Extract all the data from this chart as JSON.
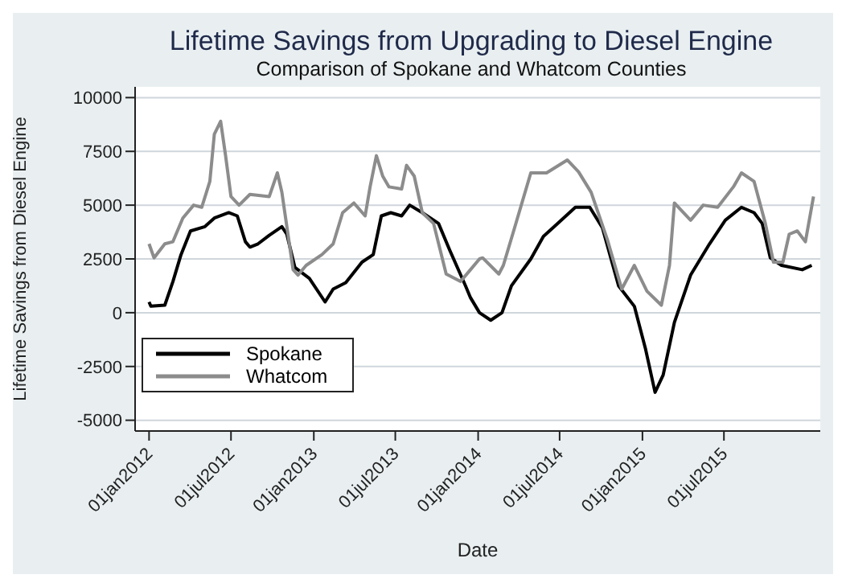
{
  "chart_data": {
    "type": "line",
    "title": "Lifetime Savings from Upgrading to Diesel Engine",
    "subtitle": "Comparison of Spokane and Whatcom Counties",
    "xlabel": "Date",
    "ylabel": "Lifetime Savings from Diesel Engine",
    "xlim": [
      "2011-12-01",
      "2016-01-31"
    ],
    "xticks": [
      {
        "value": "2012-01-01",
        "label": "01jan2012"
      },
      {
        "value": "2012-07-01",
        "label": "01jul2012"
      },
      {
        "value": "2013-01-01",
        "label": "01jan2013"
      },
      {
        "value": "2013-07-01",
        "label": "01jul2013"
      },
      {
        "value": "2014-01-01",
        "label": "01jan2014"
      },
      {
        "value": "2014-07-01",
        "label": "01jul2014"
      },
      {
        "value": "2015-01-01",
        "label": "01jan2015"
      },
      {
        "value": "2015-07-01",
        "label": "01jul2015"
      }
    ],
    "ylim": [
      -5500,
      10500
    ],
    "yticks": [
      -5000,
      -2500,
      0,
      2500,
      5000,
      7500,
      10000
    ],
    "grid": "y",
    "legend": "bottom left",
    "marker": "none",
    "line_style": "solid",
    "series": [
      {
        "name": "Spokane",
        "color": "#000000",
        "x": [
          "2012-01-01",
          "2012-01-05",
          "2012-02-05",
          "2012-02-23",
          "2012-03-12",
          "2012-04-02",
          "2012-05-04",
          "2012-05-25",
          "2012-06-26",
          "2012-07-15",
          "2012-08-02",
          "2012-08-12",
          "2012-08-30",
          "2012-09-24",
          "2012-10-22",
          "2012-11-02",
          "2012-11-20",
          "2012-12-22",
          "2013-01-26",
          "2013-02-13",
          "2013-03-13",
          "2013-04-18",
          "2013-05-13",
          "2013-05-31",
          "2013-06-21",
          "2013-07-15",
          "2013-08-02",
          "2013-08-30",
          "2013-10-05",
          "2013-10-30",
          "2013-12-04",
          "2013-12-15",
          "2014-01-04",
          "2014-01-29",
          "2014-02-23",
          "2014-03-16",
          "2014-04-28",
          "2014-05-26",
          "2014-06-27",
          "2014-08-05",
          "2014-09-06",
          "2014-10-04",
          "2014-11-09",
          "2014-12-14",
          "2015-01-08",
          "2015-01-29",
          "2015-02-16",
          "2015-03-13",
          "2015-04-18",
          "2015-05-30",
          "2015-07-04",
          "2015-08-09",
          "2015-09-06",
          "2015-09-24",
          "2015-10-12",
          "2015-11-06",
          "2015-12-22",
          "2016-01-12"
        ],
        "values": [
          500,
          300,
          350,
          1450,
          2700,
          3800,
          4000,
          4400,
          4650,
          4500,
          3300,
          3050,
          3200,
          3600,
          4000,
          3650,
          2100,
          1600,
          500,
          1100,
          1400,
          2350,
          2700,
          4500,
          4650,
          4500,
          5000,
          4650,
          4150,
          2900,
          1250,
          700,
          0,
          -350,
          0,
          1250,
          2500,
          3550,
          4150,
          4900,
          4900,
          3950,
          1250,
          300,
          -1700,
          -3700,
          -2900,
          -450,
          1750,
          3200,
          4300,
          4900,
          4650,
          4150,
          2550,
          2200,
          2000,
          2200
        ]
      },
      {
        "name": "Whatcom",
        "color": "#8c8c8c",
        "x": [
          "2012-01-01",
          "2012-01-12",
          "2012-02-05",
          "2012-02-23",
          "2012-03-16",
          "2012-04-09",
          "2012-04-27",
          "2012-05-15",
          "2012-05-25",
          "2012-06-08",
          "2012-06-19",
          "2012-07-01",
          "2012-07-19",
          "2012-08-12",
          "2012-09-24",
          "2012-10-12",
          "2012-10-22",
          "2012-11-16",
          "2012-11-27",
          "2012-12-15",
          "2013-01-19",
          "2013-02-13",
          "2013-03-06",
          "2013-03-31",
          "2013-04-25",
          "2013-05-06",
          "2013-05-20",
          "2013-06-03",
          "2013-06-17",
          "2013-07-15",
          "2013-07-26",
          "2013-08-12",
          "2013-08-30",
          "2013-09-24",
          "2013-10-22",
          "2013-11-23",
          "2013-12-15",
          "2014-01-04",
          "2014-01-11",
          "2014-02-16",
          "2014-02-26",
          "2014-03-23",
          "2014-04-28",
          "2014-06-02",
          "2014-07-18",
          "2014-08-12",
          "2014-09-09",
          "2014-10-15",
          "2014-11-16",
          "2014-12-14",
          "2015-01-11",
          "2015-02-12",
          "2015-03-02",
          "2015-03-13",
          "2015-04-18",
          "2015-05-16",
          "2015-06-17",
          "2015-07-22",
          "2015-08-09",
          "2015-09-06",
          "2015-10-01",
          "2015-10-19",
          "2015-11-09",
          "2015-11-23",
          "2015-12-11",
          "2015-12-29",
          "2016-01-16"
        ],
        "values": [
          3200,
          2550,
          3200,
          3300,
          4400,
          5000,
          4900,
          6100,
          8300,
          8900,
          7300,
          5400,
          5000,
          5500,
          5400,
          6500,
          5600,
          2000,
          1750,
          2200,
          2700,
          3200,
          4650,
          5100,
          4500,
          5850,
          7300,
          6350,
          5850,
          5750,
          6850,
          6350,
          4650,
          4150,
          1800,
          1450,
          2000,
          2500,
          2550,
          1800,
          2200,
          3950,
          6500,
          6500,
          7100,
          6550,
          5600,
          3400,
          1100,
          2200,
          1000,
          350,
          2200,
          5100,
          4300,
          5000,
          4900,
          5850,
          6500,
          6100,
          4150,
          2350,
          2350,
          3650,
          3800,
          3300,
          5400
        ]
      }
    ]
  }
}
